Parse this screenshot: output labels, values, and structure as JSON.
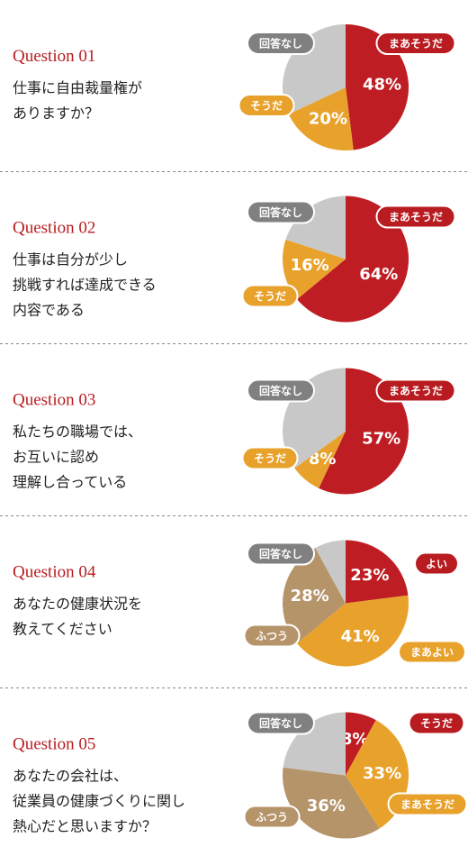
{
  "chart_data": [
    {
      "type": "pie",
      "title": "Question 01",
      "subtitle": [
        "仕事に自由裁量権が",
        "ありますか？"
      ],
      "categories": [
        "まあそうだ",
        "そうだ",
        "回答なし"
      ],
      "values": [
        48,
        20,
        32
      ],
      "value_labels": [
        "48%",
        "20%",
        null
      ],
      "colors": [
        "#be1e23",
        "#e8a22c",
        "#c8c8c8"
      ],
      "legend_colors": [
        "#b81c20",
        "#e8a22c",
        "#808080"
      ]
    },
    {
      "type": "pie",
      "title": "Question 02",
      "subtitle": [
        "仕事は自分が少し",
        "挑戦すれば達成できる",
        "内容である"
      ],
      "categories": [
        "まあそうだ",
        "そうだ",
        "回答なし"
      ],
      "values": [
        64,
        16,
        20
      ],
      "value_labels": [
        "64%",
        "16%",
        null
      ],
      "colors": [
        "#be1e23",
        "#e8a22c",
        "#c8c8c8"
      ],
      "legend_colors": [
        "#b81c20",
        "#e8a22c",
        "#808080"
      ]
    },
    {
      "type": "pie",
      "title": "Question 03",
      "subtitle": [
        "私たちの職場では、",
        "お互いに認め",
        "理解し合っている"
      ],
      "categories": [
        "まあそうだ",
        "そうだ",
        "回答なし"
      ],
      "values": [
        57,
        8,
        35
      ],
      "value_labels": [
        "57%",
        "8%",
        null
      ],
      "colors": [
        "#be1e23",
        "#e8a22c",
        "#c8c8c8"
      ],
      "legend_colors": [
        "#b81c20",
        "#e8a22c",
        "#808080"
      ]
    },
    {
      "type": "pie",
      "title": "Question 04",
      "subtitle": [
        "あなたの健康状況を",
        "教えてください"
      ],
      "categories": [
        "よい",
        "まあよい",
        "ふつう",
        "回答なし"
      ],
      "values": [
        23,
        41,
        28,
        8
      ],
      "value_labels": [
        "23%",
        "41%",
        "28%",
        null
      ],
      "colors": [
        "#be1e23",
        "#e8a22c",
        "#b5946a",
        "#c8c8c8"
      ],
      "legend_colors": [
        "#b81c20",
        "#e8a22c",
        "#b5946a",
        "#808080"
      ]
    },
    {
      "type": "pie",
      "title": "Question 05",
      "subtitle": [
        "あなたの会社は、",
        "従業員の健康づくりに関し",
        "熱心だと思いますか？"
      ],
      "categories": [
        "そうだ",
        "まあそうだ",
        "ふつう",
        "回答なし"
      ],
      "values": [
        8,
        33,
        36,
        23
      ],
      "value_labels": [
        "8%",
        "33%",
        "36%",
        null
      ],
      "colors": [
        "#be1e23",
        "#e8a22c",
        "#b5946a",
        "#c8c8c8"
      ],
      "legend_colors": [
        "#b81c20",
        "#e8a22c",
        "#b5946a",
        "#808080"
      ]
    }
  ]
}
